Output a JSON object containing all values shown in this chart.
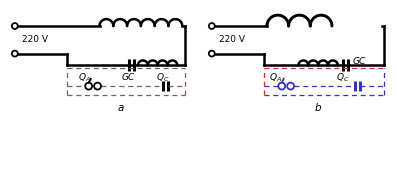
{
  "voltage": "220 V",
  "label_a": "a",
  "label_b": "b",
  "black": "#000000",
  "gray": "#666666",
  "red": "#cc3333",
  "blue": "#3333cc",
  "bg": "#ffffff",
  "lw_main": 1.8,
  "lw_dash": 0.9,
  "lw_cap": 2.2,
  "figw": 3.97,
  "figh": 1.83,
  "dpi": 100
}
